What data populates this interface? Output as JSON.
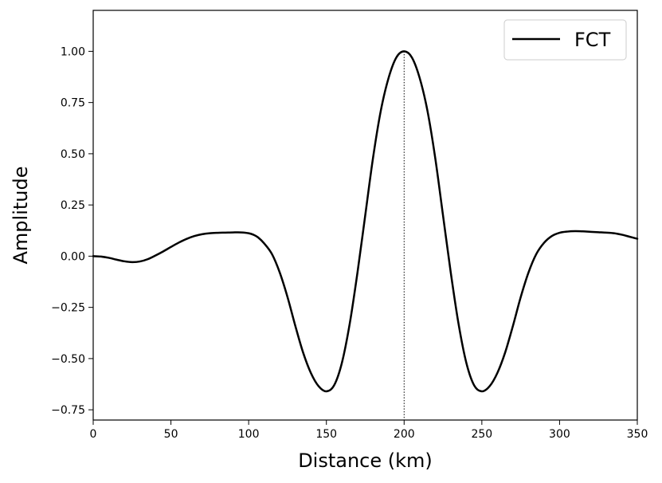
{
  "chart_data": {
    "type": "line",
    "xlabel": "Distance (km)",
    "ylabel": "Amplitude",
    "xlim": [
      0,
      350
    ],
    "ylim": [
      -0.8,
      1.2
    ],
    "xticks": [
      0,
      50,
      100,
      150,
      200,
      250,
      300,
      350
    ],
    "xtick_labels": [
      "0",
      "50",
      "100",
      "150",
      "200",
      "250",
      "300",
      "350"
    ],
    "yticks": [
      1.0,
      0.75,
      0.5,
      0.25,
      0.0,
      -0.25,
      -0.5,
      -0.75
    ],
    "ytick_labels": [
      "1.00",
      "0.75",
      "0.50",
      "0.25",
      "0.00",
      "−0.25",
      "−0.50",
      "−0.75"
    ],
    "grid": false,
    "legend": {
      "placement": "top-right",
      "entries": [
        "FCT"
      ]
    },
    "reference_line": {
      "x": 200,
      "style": "dotted",
      "color": "#000000"
    },
    "series": [
      {
        "name": "FCT",
        "color": "#000000",
        "points": [
          [
            0,
            0.0
          ],
          [
            5,
            -0.002
          ],
          [
            10,
            -0.008
          ],
          [
            15,
            -0.017
          ],
          [
            20,
            -0.025
          ],
          [
            25,
            -0.029
          ],
          [
            30,
            -0.026
          ],
          [
            35,
            -0.015
          ],
          [
            40,
            0.003
          ],
          [
            45,
            0.023
          ],
          [
            50,
            0.045
          ],
          [
            55,
            0.066
          ],
          [
            60,
            0.084
          ],
          [
            65,
            0.098
          ],
          [
            70,
            0.107
          ],
          [
            75,
            0.112
          ],
          [
            80,
            0.114
          ],
          [
            85,
            0.115
          ],
          [
            90,
            0.116
          ],
          [
            95,
            0.116
          ],
          [
            100,
            0.112
          ],
          [
            103,
            0.105
          ],
          [
            106,
            0.092
          ],
          [
            110,
            0.062
          ],
          [
            115,
            0.01
          ],
          [
            120,
            -0.08
          ],
          [
            125,
            -0.2
          ],
          [
            130,
            -0.34
          ],
          [
            135,
            -0.47
          ],
          [
            140,
            -0.57
          ],
          [
            145,
            -0.635
          ],
          [
            150,
            -0.66
          ],
          [
            155,
            -0.63
          ],
          [
            160,
            -0.52
          ],
          [
            165,
            -0.33
          ],
          [
            170,
            -0.08
          ],
          [
            175,
            0.2
          ],
          [
            180,
            0.48
          ],
          [
            185,
            0.71
          ],
          [
            190,
            0.87
          ],
          [
            195,
            0.97
          ],
          [
            200,
            1.0
          ],
          [
            205,
            0.97
          ],
          [
            210,
            0.87
          ],
          [
            215,
            0.71
          ],
          [
            220,
            0.48
          ],
          [
            225,
            0.2
          ],
          [
            230,
            -0.08
          ],
          [
            235,
            -0.33
          ],
          [
            240,
            -0.52
          ],
          [
            245,
            -0.63
          ],
          [
            250,
            -0.66
          ],
          [
            255,
            -0.635
          ],
          [
            260,
            -0.57
          ],
          [
            265,
            -0.47
          ],
          [
            270,
            -0.34
          ],
          [
            275,
            -0.2
          ],
          [
            280,
            -0.08
          ],
          [
            285,
            0.01
          ],
          [
            290,
            0.065
          ],
          [
            295,
            0.098
          ],
          [
            300,
            0.114
          ],
          [
            305,
            0.12
          ],
          [
            310,
            0.122
          ],
          [
            315,
            0.121
          ],
          [
            320,
            0.119
          ],
          [
            325,
            0.117
          ],
          [
            330,
            0.115
          ],
          [
            335,
            0.112
          ],
          [
            340,
            0.105
          ],
          [
            345,
            0.095
          ],
          [
            350,
            0.085
          ]
        ]
      }
    ]
  }
}
